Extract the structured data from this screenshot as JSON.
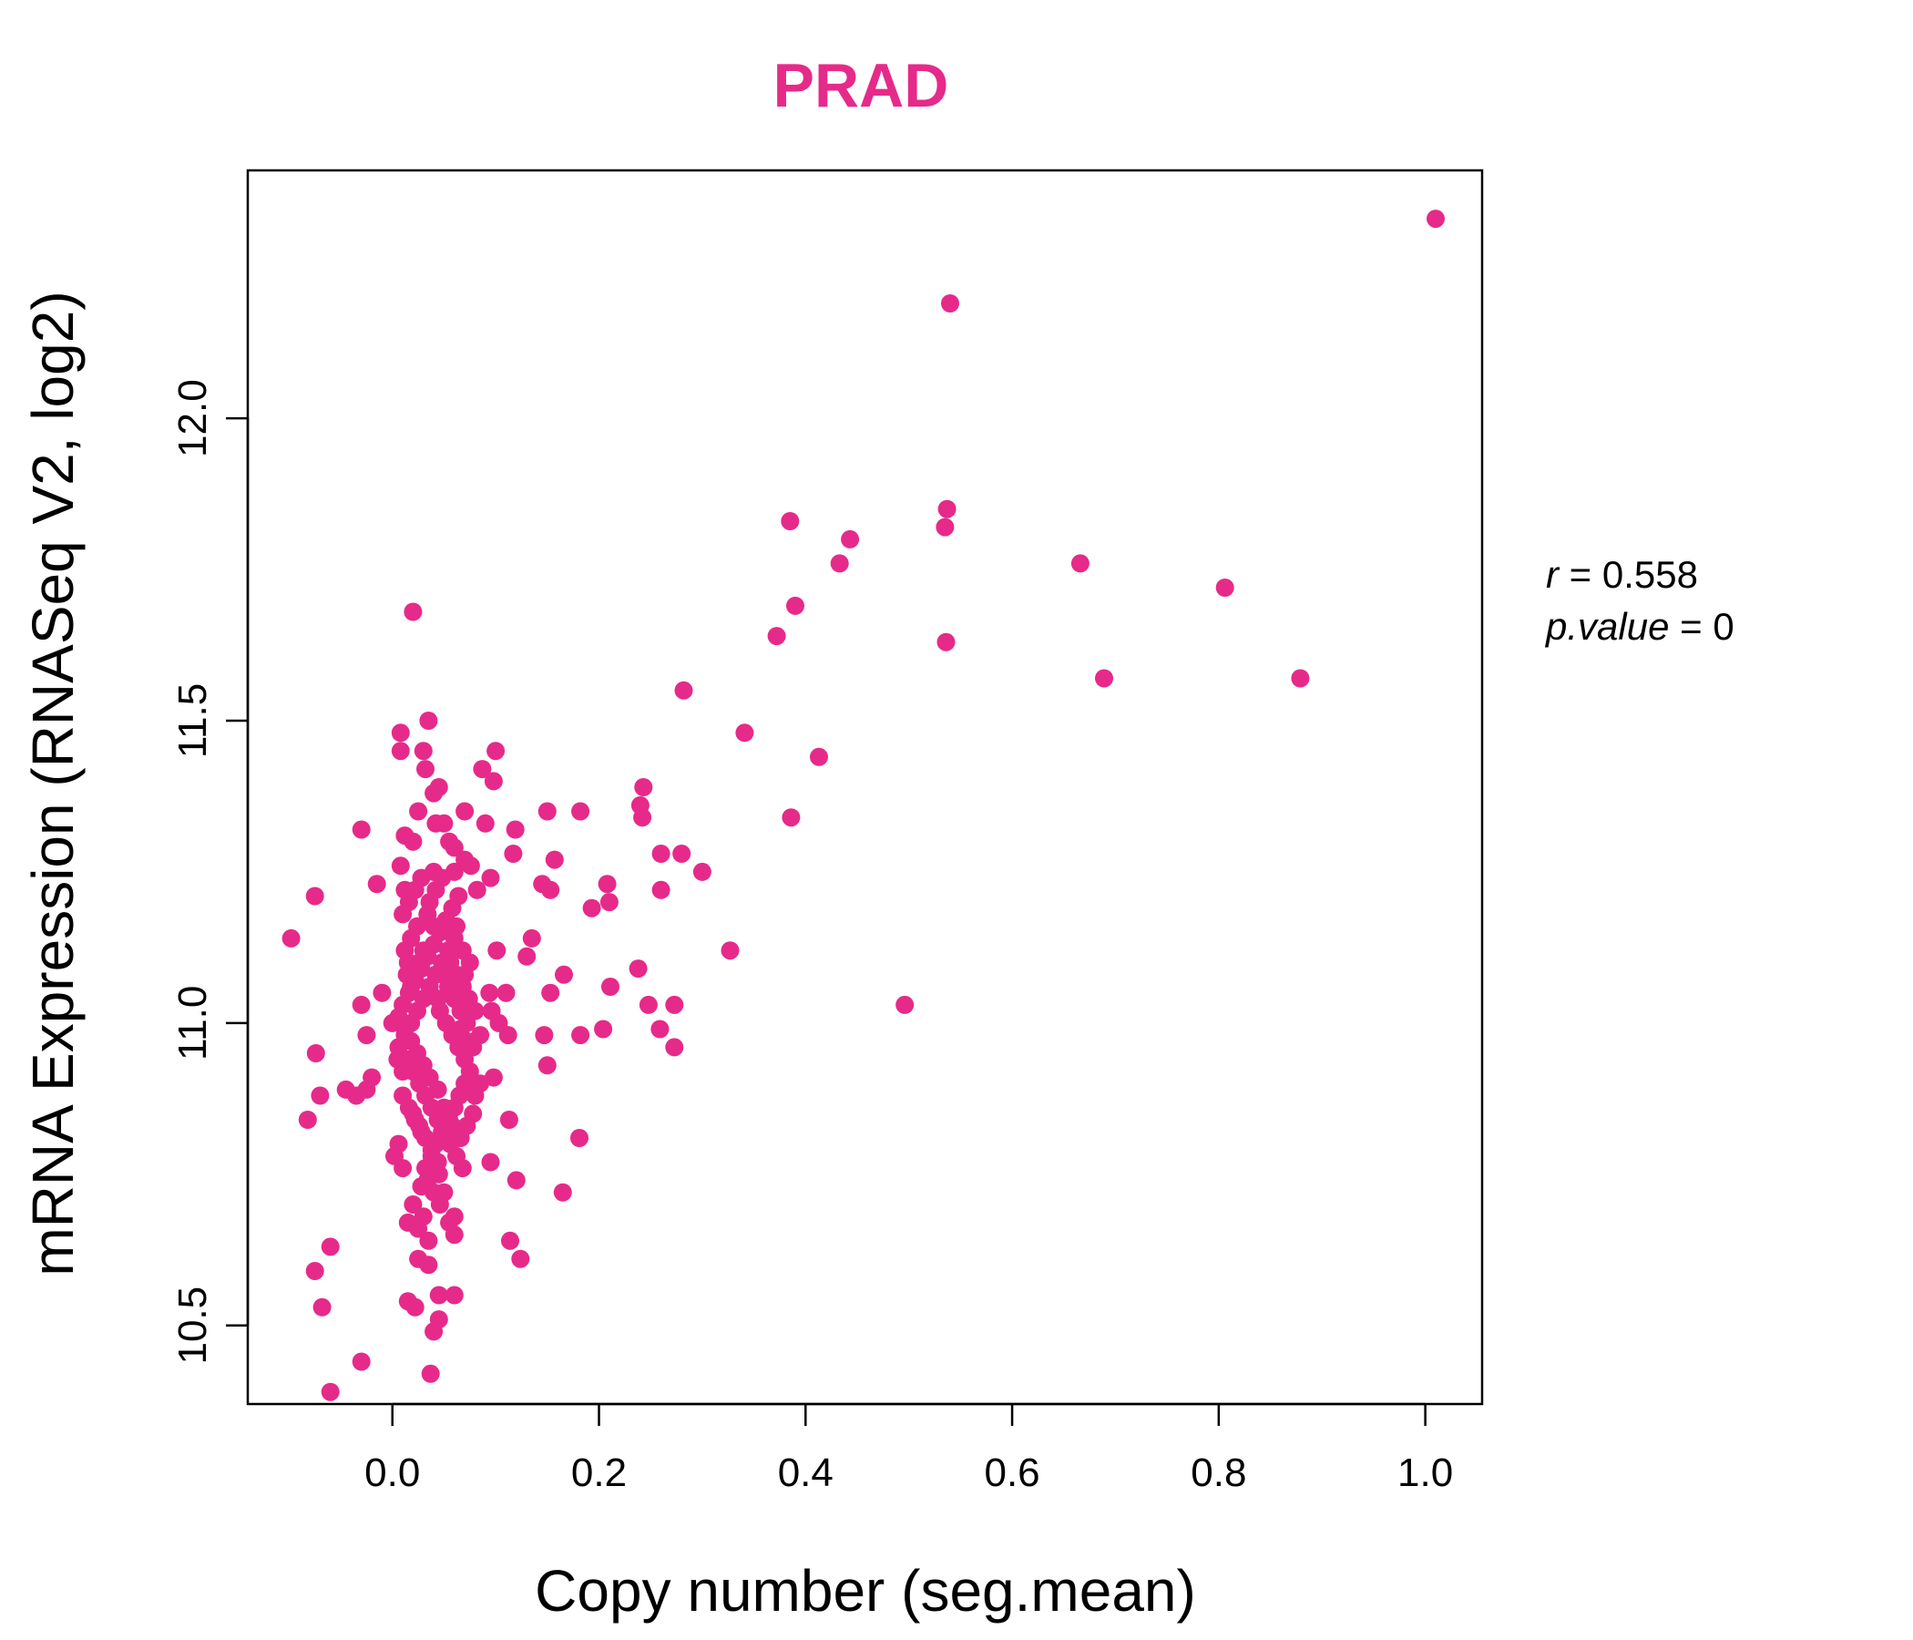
{
  "chart_data": {
    "type": "scatter",
    "title": "PRAD",
    "xlabel": "Copy number (seg.mean)",
    "ylabel": "mRNA Expression (RNASeq V2, log2)",
    "xlim": [
      -0.14,
      1.055
    ],
    "ylim": [
      10.37,
      12.41
    ],
    "xticks": [
      "0.0",
      "0.2",
      "0.4",
      "0.6",
      "0.8",
      "1.0"
    ],
    "yticks": [
      "10.5",
      "11.0",
      "11.5",
      "12.0"
    ],
    "color": "#E62A8A",
    "grid": false,
    "annotation": {
      "r_label": "r",
      "r_value": "0.558",
      "p_label": "p.value",
      "p_value": "0"
    },
    "points": [
      [
        1.01,
        12.33
      ],
      [
        0.54,
        12.19
      ],
      [
        0.537,
        11.85
      ],
      [
        0.535,
        11.82
      ],
      [
        0.385,
        11.83
      ],
      [
        0.443,
        11.8
      ],
      [
        0.433,
        11.76
      ],
      [
        0.666,
        11.76
      ],
      [
        0.806,
        11.72
      ],
      [
        0.39,
        11.69
      ],
      [
        0.372,
        11.64
      ],
      [
        0.536,
        11.63
      ],
      [
        0.689,
        11.57
      ],
      [
        0.879,
        11.57
      ],
      [
        0.282,
        11.55
      ],
      [
        0.341,
        11.48
      ],
      [
        0.413,
        11.44
      ],
      [
        0.243,
        11.39
      ],
      [
        0.24,
        11.36
      ],
      [
        0.242,
        11.34
      ],
      [
        0.386,
        11.34
      ],
      [
        0.26,
        11.28
      ],
      [
        0.28,
        11.28
      ],
      [
        0.3,
        11.25
      ],
      [
        0.26,
        11.22
      ],
      [
        0.208,
        11.23
      ],
      [
        0.21,
        11.2
      ],
      [
        0.193,
        11.19
      ],
      [
        0.327,
        11.12
      ],
      [
        0.238,
        11.09
      ],
      [
        0.496,
        11.03
      ],
      [
        0.248,
        11.03
      ],
      [
        0.273,
        11.03
      ],
      [
        0.259,
        10.99
      ],
      [
        0.273,
        10.96
      ],
      [
        0.204,
        10.99
      ],
      [
        0.211,
        11.06
      ],
      [
        0.182,
        10.98
      ],
      [
        0.181,
        10.81
      ],
      [
        0.166,
        11.08
      ],
      [
        0.153,
        11.05
      ],
      [
        0.15,
        11.35
      ],
      [
        0.182,
        11.35
      ],
      [
        0.157,
        11.27
      ],
      [
        0.145,
        11.23
      ],
      [
        0.153,
        11.22
      ],
      [
        0.165,
        10.72
      ],
      [
        0.15,
        10.93
      ],
      [
        0.147,
        10.98
      ],
      [
        0.112,
        10.98
      ],
      [
        0.113,
        10.84
      ],
      [
        0.12,
        10.74
      ],
      [
        0.114,
        10.64
      ],
      [
        0.124,
        10.61
      ],
      [
        0.095,
        10.77
      ],
      [
        0.135,
        11.14
      ],
      [
        0.13,
        11.11
      ],
      [
        0.11,
        11.05
      ],
      [
        0.103,
        11.0
      ],
      [
        0.119,
        11.32
      ],
      [
        0.117,
        11.28
      ],
      [
        0.1,
        11.45
      ],
      [
        0.098,
        11.4
      ],
      [
        0.087,
        11.42
      ],
      [
        0.095,
        11.24
      ],
      [
        0.09,
        11.33
      ],
      [
        0.101,
        11.12
      ],
      [
        0.094,
        11.05
      ],
      [
        0.096,
        11.02
      ],
      [
        0.098,
        10.91
      ],
      [
        -0.098,
        11.14
      ],
      [
        -0.075,
        11.21
      ],
      [
        -0.082,
        10.84
      ],
      [
        -0.07,
        10.88
      ],
      [
        -0.074,
        10.95
      ],
      [
        -0.06,
        10.63
      ],
      [
        -0.075,
        10.59
      ],
      [
        -0.068,
        10.53
      ],
      [
        -0.06,
        10.39
      ],
      [
        -0.03,
        10.44
      ],
      [
        -0.03,
        11.32
      ],
      [
        -0.015,
        11.23
      ],
      [
        -0.01,
        11.05
      ],
      [
        -0.03,
        11.03
      ],
      [
        -0.025,
        10.98
      ],
      [
        -0.045,
        10.89
      ],
      [
        -0.035,
        10.88
      ],
      [
        -0.02,
        10.91
      ],
      [
        -0.025,
        10.89
      ],
      [
        0.01,
        10.92
      ],
      [
        0.005,
        10.94
      ],
      [
        0.0,
        11.0
      ],
      [
        0.002,
        10.78
      ],
      [
        0.006,
        10.8
      ],
      [
        0.01,
        10.76
      ],
      [
        0.008,
        11.26
      ],
      [
        0.012,
        11.22
      ],
      [
        0.01,
        11.18
      ],
      [
        0.015,
        11.1
      ],
      [
        0.02,
        11.3
      ],
      [
        0.025,
        11.35
      ],
      [
        0.03,
        11.45
      ],
      [
        0.032,
        11.42
      ],
      [
        0.035,
        11.5
      ],
      [
        0.04,
        11.38
      ],
      [
        0.042,
        11.33
      ],
      [
        0.045,
        11.39
      ],
      [
        0.05,
        11.33
      ],
      [
        0.055,
        11.3
      ],
      [
        0.06,
        11.25
      ],
      [
        0.06,
        11.29
      ],
      [
        0.07,
        11.35
      ],
      [
        0.07,
        11.27
      ],
      [
        0.076,
        11.26
      ],
      [
        0.082,
        11.22
      ],
      [
        0.008,
        11.48
      ],
      [
        0.008,
        11.45
      ],
      [
        0.02,
        11.68
      ],
      [
        0.012,
        11.31
      ],
      [
        0.04,
        11.25
      ],
      [
        0.015,
        10.54
      ],
      [
        0.022,
        10.53
      ],
      [
        0.037,
        10.42
      ],
      [
        0.04,
        10.49
      ],
      [
        0.045,
        10.51
      ],
      [
        0.045,
        10.55
      ],
      [
        0.06,
        10.55
      ],
      [
        0.035,
        10.6
      ],
      [
        0.025,
        10.61
      ],
      [
        0.06,
        10.65
      ],
      [
        0.06,
        10.68
      ],
      [
        0.055,
        10.67
      ],
      [
        0.05,
        10.72
      ],
      [
        0.045,
        10.75
      ],
      [
        0.015,
        10.67
      ],
      [
        0.02,
        10.7
      ],
      [
        0.028,
        10.73
      ],
      [
        0.032,
        10.76
      ],
      [
        0.038,
        10.78
      ],
      [
        0.042,
        10.8
      ],
      [
        0.048,
        10.82
      ],
      [
        0.055,
        10.84
      ],
      [
        0.06,
        10.86
      ],
      [
        0.065,
        10.88
      ],
      [
        0.07,
        10.9
      ],
      [
        0.075,
        10.92
      ],
      [
        0.08,
        10.88
      ],
      [
        0.085,
        10.9
      ],
      [
        0.078,
        10.85
      ],
      [
        0.072,
        10.83
      ],
      [
        0.066,
        10.81
      ],
      [
        0.058,
        10.83
      ],
      [
        0.05,
        10.86
      ],
      [
        0.044,
        10.89
      ],
      [
        0.036,
        10.91
      ],
      [
        0.03,
        10.93
      ],
      [
        0.024,
        10.95
      ],
      [
        0.018,
        10.97
      ],
      [
        0.012,
        10.99
      ],
      [
        0.006,
        11.01
      ],
      [
        0.01,
        11.03
      ],
      [
        0.016,
        11.05
      ],
      [
        0.022,
        11.07
      ],
      [
        0.028,
        11.09
      ],
      [
        0.034,
        11.11
      ],
      [
        0.04,
        11.13
      ],
      [
        0.046,
        11.15
      ],
      [
        0.052,
        11.17
      ],
      [
        0.058,
        11.19
      ],
      [
        0.064,
        11.21
      ],
      [
        0.06,
        11.14
      ],
      [
        0.054,
        11.12
      ],
      [
        0.048,
        11.1
      ],
      [
        0.042,
        11.08
      ],
      [
        0.036,
        11.06
      ],
      [
        0.03,
        11.04
      ],
      [
        0.024,
        11.02
      ],
      [
        0.018,
        11.0
      ],
      [
        0.012,
        10.98
      ],
      [
        0.006,
        10.96
      ],
      [
        0.014,
        10.94
      ],
      [
        0.02,
        10.92
      ],
      [
        0.026,
        10.9
      ],
      [
        0.032,
        10.88
      ],
      [
        0.038,
        10.86
      ],
      [
        0.044,
        10.84
      ],
      [
        0.05,
        10.82
      ],
      [
        0.056,
        10.8
      ],
      [
        0.062,
        10.78
      ],
      [
        0.068,
        10.76
      ],
      [
        0.016,
        11.2
      ],
      [
        0.022,
        11.22
      ],
      [
        0.028,
        11.24
      ],
      [
        0.034,
        11.18
      ],
      [
        0.04,
        11.16
      ],
      [
        0.046,
        11.02
      ],
      [
        0.052,
        11.0
      ],
      [
        0.058,
        10.98
      ],
      [
        0.064,
        10.96
      ],
      [
        0.07,
        10.94
      ],
      [
        0.065,
        11.05
      ],
      [
        0.07,
        11.08
      ],
      [
        0.075,
        11.1
      ],
      [
        0.068,
        11.12
      ],
      [
        0.062,
        11.16
      ],
      [
        0.02,
        10.85
      ],
      [
        0.026,
        10.83
      ],
      [
        0.032,
        10.81
      ],
      [
        0.038,
        10.79
      ],
      [
        0.044,
        10.77
      ],
      [
        0.01,
        10.88
      ],
      [
        0.016,
        10.86
      ],
      [
        0.022,
        10.84
      ],
      [
        0.028,
        10.82
      ],
      [
        0.034,
        10.74
      ],
      [
        0.04,
        10.72
      ],
      [
        0.046,
        10.7
      ],
      [
        0.03,
        10.68
      ],
      [
        0.025,
        10.66
      ],
      [
        0.035,
        10.64
      ],
      [
        0.018,
        11.14
      ],
      [
        0.024,
        11.16
      ],
      [
        0.03,
        11.12
      ],
      [
        0.036,
        11.2
      ],
      [
        0.042,
        11.22
      ],
      [
        0.048,
        11.24
      ],
      [
        0.054,
        11.06
      ],
      [
        0.06,
        11.04
      ],
      [
        0.066,
        11.02
      ],
      [
        0.072,
        11.0
      ],
      [
        0.012,
        11.12
      ],
      [
        0.014,
        11.08
      ],
      [
        0.018,
        11.06
      ],
      [
        0.026,
        11.1
      ],
      [
        0.044,
        11.04
      ],
      [
        0.05,
        11.08
      ],
      [
        0.056,
        11.1
      ],
      [
        0.062,
        11.08
      ],
      [
        0.068,
        11.06
      ],
      [
        0.074,
        11.04
      ],
      [
        0.08,
        11.02
      ],
      [
        0.085,
        10.98
      ],
      [
        0.078,
        10.96
      ],
      [
        0.072,
        10.97
      ],
      [
        0.066,
        10.99
      ]
    ]
  }
}
